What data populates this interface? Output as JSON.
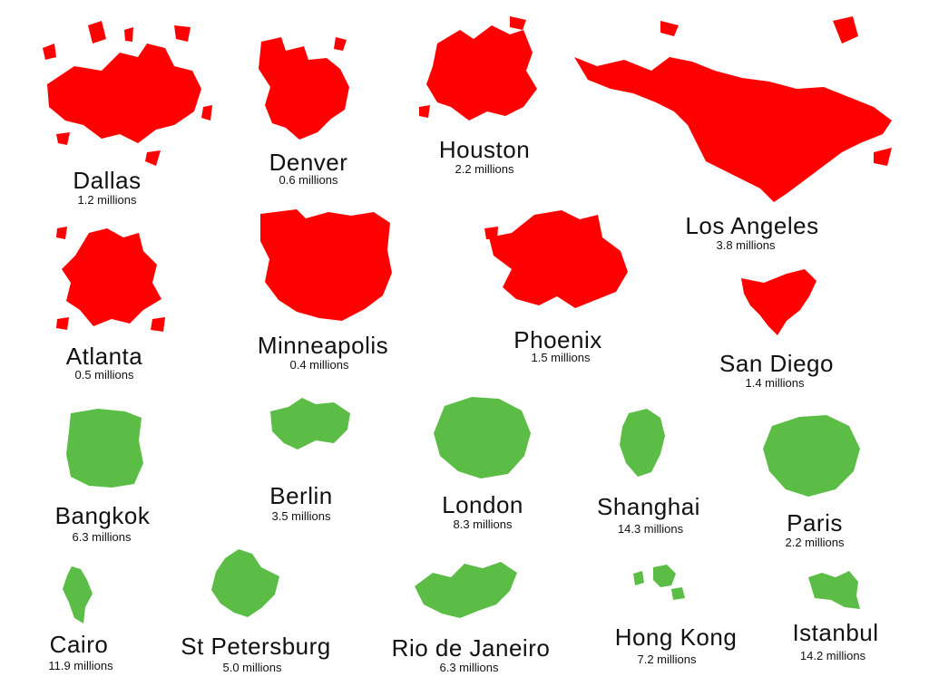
{
  "colors": {
    "us": "#ff0000",
    "world": "#5bbd45",
    "text": "#111111",
    "background": "#ffffff"
  },
  "cities": [
    {
      "id": "dallas",
      "name": "Dallas",
      "population": "1.2 millions",
      "group": "us"
    },
    {
      "id": "denver",
      "name": "Denver",
      "population": "0.6 millions",
      "group": "us"
    },
    {
      "id": "houston",
      "name": "Houston",
      "population": "2.2 millions",
      "group": "us"
    },
    {
      "id": "los-angeles",
      "name": "Los Angeles",
      "population": "3.8 millions",
      "group": "us"
    },
    {
      "id": "atlanta",
      "name": "Atlanta",
      "population": "0.5 millions",
      "group": "us"
    },
    {
      "id": "minneapolis",
      "name": "Minneapolis",
      "population": "0.4 millions",
      "group": "us"
    },
    {
      "id": "phoenix",
      "name": "Phoenix",
      "population": "1.5 millions",
      "group": "us"
    },
    {
      "id": "san-diego",
      "name": "San Diego",
      "population": "1.4 millions",
      "group": "us"
    },
    {
      "id": "bangkok",
      "name": "Bangkok",
      "population": "6.3 millions",
      "group": "world"
    },
    {
      "id": "berlin",
      "name": "Berlin",
      "population": "3.5 millions",
      "group": "world"
    },
    {
      "id": "london",
      "name": "London",
      "population": "8.3 millions",
      "group": "world"
    },
    {
      "id": "shanghai",
      "name": "Shanghai",
      "population": "14.3 millions",
      "group": "world"
    },
    {
      "id": "paris",
      "name": "Paris",
      "population": "2.2 millions",
      "group": "world"
    },
    {
      "id": "cairo",
      "name": "Cairo",
      "population": "11.9 millions",
      "group": "world"
    },
    {
      "id": "st-petersburg",
      "name": "St Petersburg",
      "population": "5.0 millions",
      "group": "world"
    },
    {
      "id": "rio-de-janeiro",
      "name": "Rio de Janeiro",
      "population": "6.3 millions",
      "group": "world"
    },
    {
      "id": "hong-kong",
      "name": "Hong Kong",
      "population": "7.2 millions",
      "group": "world"
    },
    {
      "id": "istanbul",
      "name": "Istanbul",
      "population": "14.2 millions",
      "group": "world"
    }
  ]
}
